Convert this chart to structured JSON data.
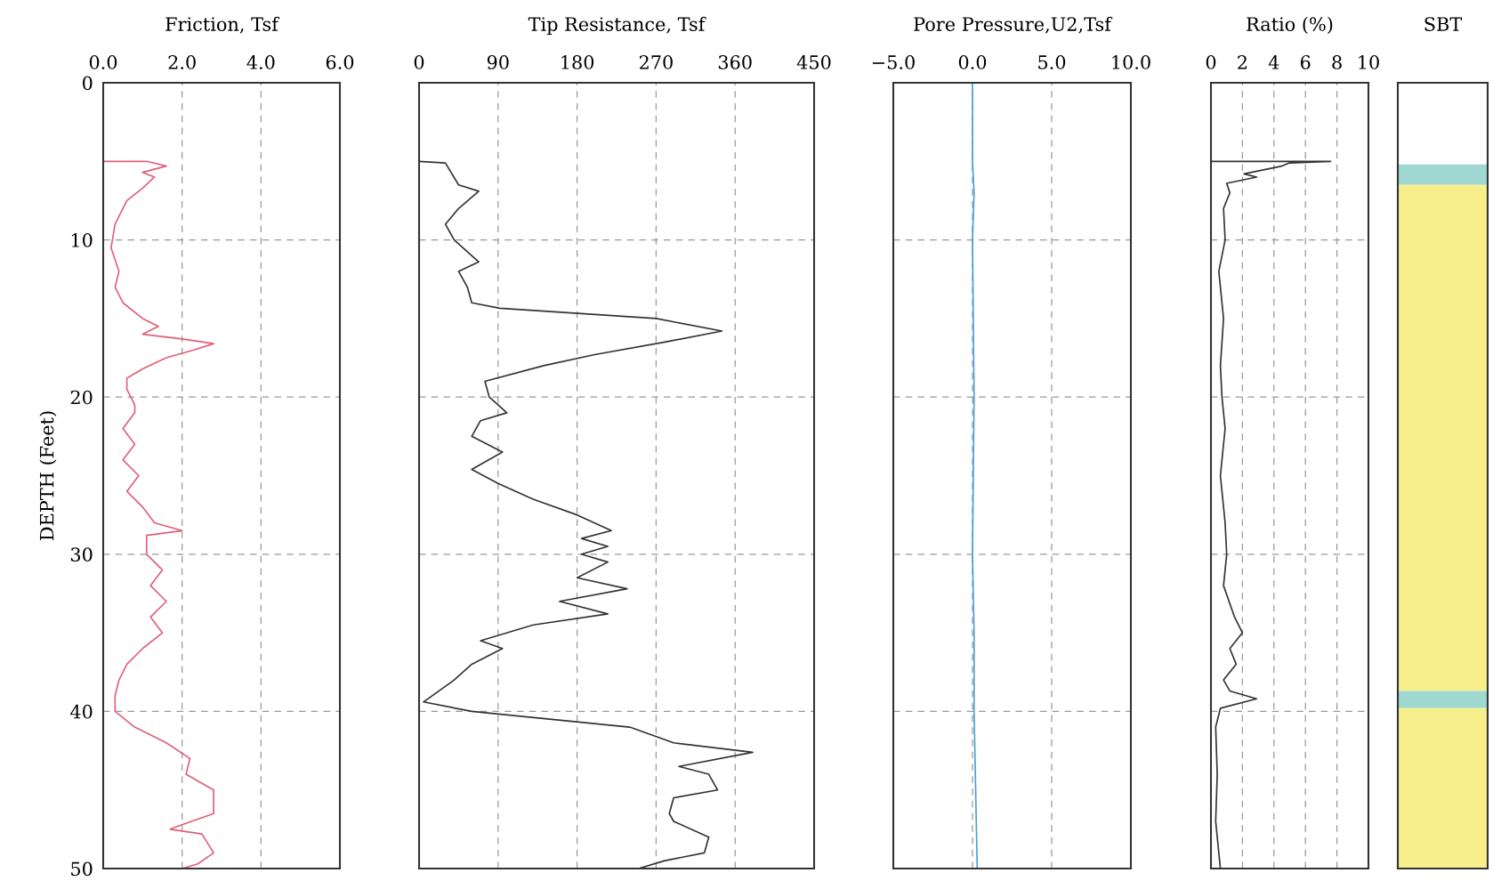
{
  "chart_data": [
    {
      "type": "line",
      "title": "Friction, Tsf",
      "ylabel": "DEPTH (Feet)",
      "ylim": [
        50,
        0
      ],
      "yticks": [
        0,
        10,
        20,
        30,
        40,
        50
      ],
      "xlim": [
        0,
        6
      ],
      "xticks": [
        {
          "value": 0,
          "label": "0.0"
        },
        {
          "value": 2,
          "label": "2.0"
        },
        {
          "value": 4,
          "label": "4.0"
        },
        {
          "value": 6,
          "label": "6.0"
        }
      ],
      "grid": true,
      "series": [
        {
          "color": "#e0607a",
          "x": [
            0,
            0,
            1.1,
            1.6,
            1.0,
            1.3,
            1.0,
            0.6,
            0.3,
            0.2,
            0.4,
            0.3,
            0.5,
            1.0,
            1.4,
            1.0,
            2.0,
            2.8,
            2.3,
            1.6,
            1.0,
            0.6,
            0.6,
            0.8,
            0.8,
            0.5,
            0.8,
            0.5,
            0.9,
            0.6,
            1.0,
            1.3,
            2.0,
            1.1,
            1.1,
            1.5,
            1.2,
            1.6,
            1.2,
            1.5,
            1.0,
            0.6,
            0.4,
            0.3,
            0.3,
            0.8,
            1.6,
            2.2,
            2.1,
            2.8,
            2.8,
            1.9,
            1.7,
            2.5,
            2.8,
            2.4,
            2.0
          ],
          "values": [
            0,
            5,
            5.0,
            5.3,
            5.7,
            6.0,
            6.7,
            7.5,
            9,
            10.5,
            12,
            13,
            14,
            15,
            15.5,
            16,
            16.3,
            16.6,
            17,
            17.5,
            18.2,
            18.8,
            19.5,
            20.5,
            21,
            22,
            23,
            24,
            25,
            26,
            27,
            28,
            28.5,
            28.8,
            30,
            31,
            32,
            33,
            34,
            35,
            36,
            37,
            38,
            39,
            40,
            41,
            42,
            43,
            44,
            45,
            46.5,
            47.3,
            47.5,
            47.8,
            49,
            49.7,
            50
          ]
        }
      ]
    },
    {
      "type": "line",
      "title": "Tip Resistance, Tsf",
      "ylim": [
        50,
        0
      ],
      "yticks": [
        0,
        10,
        20,
        30,
        40,
        50
      ],
      "xlim": [
        0,
        450
      ],
      "xticks": [
        0,
        90,
        180,
        270,
        360,
        450
      ],
      "grid": true,
      "tick_labels": "x",
      "series": [
        {
          "color": "#333333",
          "x": [
            0,
            30,
            45,
            68,
            45,
            30,
            40,
            68,
            45,
            55,
            60,
            92,
            270,
            345,
            280,
            200,
            142,
            75,
            80,
            100,
            70,
            60,
            95,
            60,
            90,
            130,
            180,
            219,
            185,
            215,
            185,
            215,
            180,
            237,
            160,
            215,
            130,
            70,
            95,
            60,
            40,
            5,
            60,
            240,
            290,
            380,
            296,
            330,
            340,
            290,
            285,
            290,
            330,
            325,
            280,
            250
          ],
          "values": [
            5.0,
            5.1,
            6.5,
            6.9,
            8,
            9,
            10,
            11.4,
            12,
            13,
            14,
            14.35,
            15,
            15.8,
            16.5,
            17.3,
            18,
            19,
            20,
            21,
            21.5,
            22.5,
            23.5,
            24.6,
            25.5,
            26.5,
            27.5,
            28.5,
            29,
            29.5,
            30,
            30.5,
            31.5,
            32.2,
            33,
            33.8,
            34.5,
            35.5,
            36,
            37,
            38,
            39.4,
            40,
            41,
            42,
            42.6,
            43.5,
            44,
            45,
            45.5,
            46.5,
            47,
            48,
            49,
            49.5,
            50
          ]
        }
      ]
    },
    {
      "type": "line",
      "title": "Pore Pressure,U2,Tsf",
      "ylim": [
        50,
        0
      ],
      "yticks": [
        0,
        10,
        20,
        30,
        40,
        50
      ],
      "xlim": [
        -5,
        10
      ],
      "xticks": [
        {
          "value": -5,
          "label": "−5.0"
        },
        {
          "value": 0,
          "label": "0.0"
        },
        {
          "value": 5,
          "label": "5.0"
        },
        {
          "value": 10,
          "label": "10.0"
        }
      ],
      "grid": true,
      "tick_labels": "x",
      "series": [
        {
          "color": "#4a9fd8",
          "x": [
            0.0,
            0.0,
            0.1,
            0.0,
            0.1,
            0.0,
            0.1,
            0.1,
            0.3
          ],
          "values": [
            0,
            5,
            7,
            10,
            20,
            30,
            35,
            40,
            50
          ]
        }
      ]
    },
    {
      "type": "line",
      "title": "Ratio (%)",
      "ylim": [
        50,
        0
      ],
      "yticks": [
        0,
        10,
        20,
        30,
        40,
        50
      ],
      "xlim": [
        0,
        10
      ],
      "xticks": [
        0,
        2,
        4,
        6,
        8,
        10
      ],
      "grid": true,
      "tick_labels": "x",
      "series": [
        {
          "color": "#333333",
          "x": [
            0,
            0,
            7.6,
            5.0,
            4.5,
            2.1,
            2.9,
            1.0,
            1.2,
            0.8,
            0.9,
            0.5,
            0.8,
            0.6,
            0.7,
            0.9,
            0.6,
            0.9,
            1.0,
            0.8,
            1.5,
            2.0,
            1.2,
            1.6,
            0.8,
            1.2,
            2.9,
            0.6,
            0.3,
            0.4,
            0.3,
            0.6
          ],
          "values": [
            0,
            5,
            5,
            5.1,
            5.3,
            5.8,
            6.0,
            6.4,
            7,
            8,
            10,
            12,
            15,
            18,
            20,
            22,
            25,
            28,
            30,
            32,
            34,
            35,
            36,
            37,
            38,
            38.7,
            39.2,
            39.8,
            41,
            44,
            47,
            50
          ]
        }
      ]
    },
    {
      "type": "other",
      "title": "SBT"
    }
  ]
}
